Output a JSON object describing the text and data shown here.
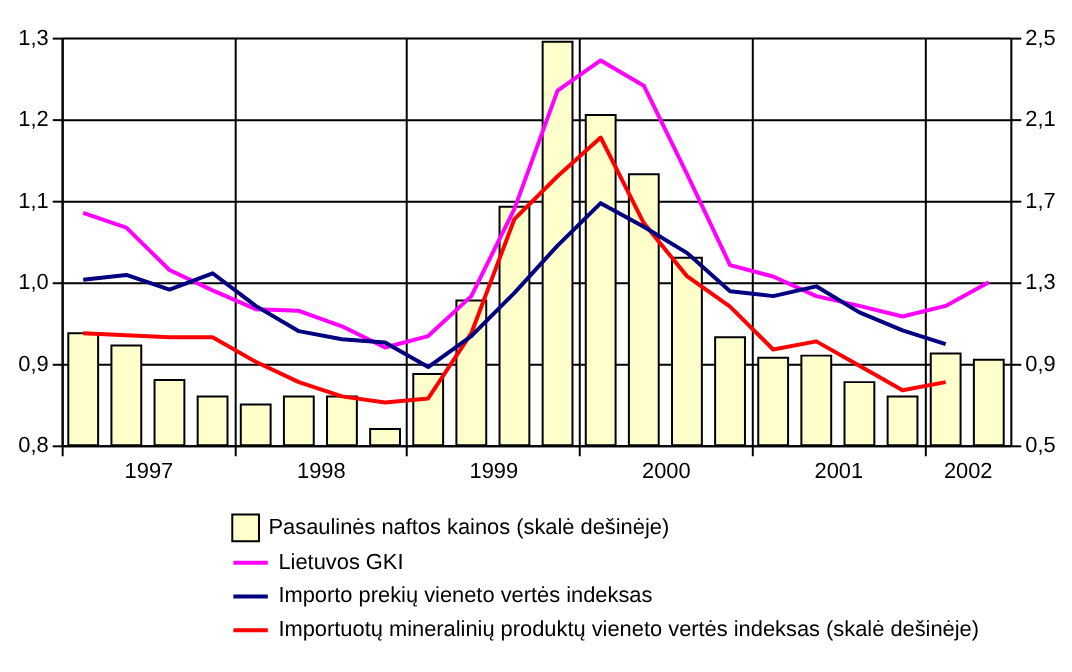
{
  "chart_data": {
    "type": "bar",
    "x": [
      1997.125,
      1997.375,
      1997.625,
      1997.875,
      1998.125,
      1998.375,
      1998.625,
      1998.875,
      1999.125,
      1999.375,
      1999.625,
      1999.875,
      2000.125,
      2000.375,
      2000.625,
      2000.875,
      2001.125,
      2001.375,
      2001.625,
      2001.875,
      2002.125,
      2002.375
    ],
    "xlim": [
      1997,
      2002.5
    ],
    "xticks": [
      {
        "value": 1997,
        "label": null
      },
      {
        "value": 1997.5,
        "label": "1997"
      },
      {
        "value": 1998,
        "label": null
      },
      {
        "value": 1998.5,
        "label": "1998"
      },
      {
        "value": 1999,
        "label": null
      },
      {
        "value": 1999.5,
        "label": "1999"
      },
      {
        "value": 2000,
        "label": null
      },
      {
        "value": 2000.5,
        "label": "2000"
      },
      {
        "value": 2001,
        "label": null
      },
      {
        "value": 2001.5,
        "label": "2001"
      },
      {
        "value": 2002,
        "label": null
      },
      {
        "value": 2002.25,
        "label": "2002"
      }
    ],
    "ylim": [
      0.8,
      1.3
    ],
    "yticks": [
      {
        "value": 0.8,
        "label": "0,8"
      },
      {
        "value": 0.9,
        "label": "0,9"
      },
      {
        "value": 1.0,
        "label": "1,0"
      },
      {
        "value": 1.1,
        "label": "1,1"
      },
      {
        "value": 1.2,
        "label": "1,2"
      },
      {
        "value": 1.3,
        "label": "1,3"
      }
    ],
    "y2lim": [
      0.5,
      2.5
    ],
    "y2ticks": [
      {
        "value": 0.5,
        "label": "0,5"
      },
      {
        "value": 0.9,
        "label": "0,9"
      },
      {
        "value": 1.3,
        "label": "1,3"
      },
      {
        "value": 1.7,
        "label": "1,7"
      },
      {
        "value": 2.1,
        "label": "2,1"
      },
      {
        "value": 2.5,
        "label": "2,5"
      }
    ],
    "grid": true,
    "legend": "bottom",
    "series": [
      {
        "name": "Pasaulinės naftos kainos (skalė dešinėje)",
        "axis": "y2",
        "color": "#ffffcc",
        "values": [
          1.05,
          0.99,
          0.82,
          0.74,
          0.7,
          0.74,
          0.74,
          0.58,
          0.85,
          1.21,
          1.67,
          2.48,
          2.12,
          1.83,
          1.42,
          1.03,
          0.93,
          0.94,
          0.81,
          0.74,
          0.95,
          0.92
        ]
      },
      {
        "name": "Lietuvos GKI",
        "type": "line",
        "color": "#ff00ff",
        "values": [
          1.085,
          1.067,
          1.015,
          0.99,
          0.967,
          0.965,
          0.946,
          0.92,
          0.934,
          0.983,
          1.09,
          1.235,
          1.272,
          1.241,
          1.133,
          1.021,
          1.007,
          0.983,
          0.971,
          0.958,
          0.971,
          1.0
        ]
      },
      {
        "name": "Importo prekių vieneto vertės indeksas",
        "type": "line",
        "color": "#000080",
        "values": [
          1.003,
          1.009,
          0.991,
          1.011,
          0.971,
          0.94,
          0.93,
          0.926,
          0.896,
          0.934,
          0.987,
          1.045,
          1.097,
          1.068,
          1.036,
          0.989,
          0.983,
          0.995,
          0.963,
          0.941,
          0.924,
          null
        ]
      },
      {
        "name": "Importuotų mineralinių produktų vieneto vertės indeksas (skalė dešinėje)",
        "type": "line",
        "axis": "y2",
        "color": "#ff0000",
        "values": [
          1.05,
          1.04,
          1.03,
          1.03,
          0.91,
          0.81,
          0.74,
          0.71,
          0.73,
          1.05,
          1.61,
          1.82,
          2.01,
          1.59,
          1.33,
          1.18,
          0.97,
          1.01,
          0.89,
          0.77,
          0.81,
          null
        ]
      }
    ]
  }
}
